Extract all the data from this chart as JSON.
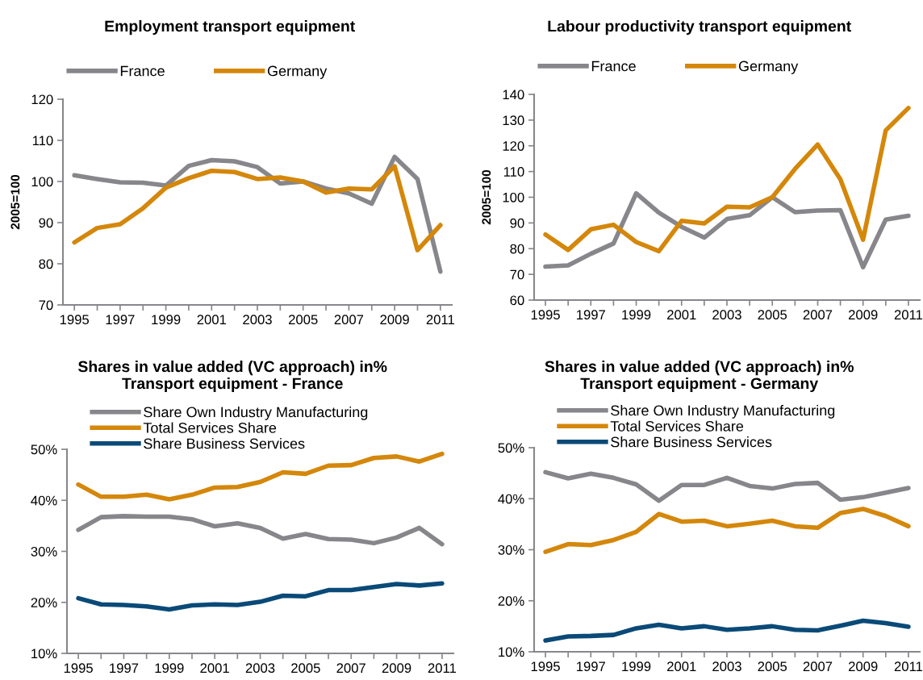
{
  "chart_data": [
    {
      "type": "line",
      "title": "Employment transport equipment",
      "ylabel": "2005=100",
      "categories": [
        "1995",
        null,
        "1997",
        null,
        "1999",
        null,
        "2001",
        null,
        "2003",
        null,
        "2005",
        null,
        "2007",
        null,
        "2009",
        null,
        "2011"
      ],
      "ylim": [
        70,
        120
      ],
      "yticks": [
        70,
        80,
        90,
        100,
        110,
        120
      ],
      "legend": "top",
      "grid": false,
      "series": [
        {
          "name": "France",
          "color": "#87868b",
          "values": [
            101.5,
            100.6,
            99.8,
            99.7,
            99,
            103.8,
            105.2,
            104.9,
            103.5,
            99.5,
            100,
            98.3,
            97.1,
            94.6,
            106,
            100.6,
            78.1
          ]
        },
        {
          "name": "Germany",
          "color": "#d4870a",
          "values": [
            85.2,
            88.7,
            89.6,
            93.5,
            98.5,
            100.8,
            102.6,
            102.3,
            100.6,
            101,
            100,
            97.3,
            98.3,
            98.1,
            103.7,
            83.3,
            89.4
          ]
        }
      ]
    },
    {
      "type": "line",
      "title": "Labour productivity transport equipment",
      "ylabel": "2005=100",
      "categories": [
        "1995",
        null,
        "1997",
        null,
        "1999",
        null,
        "2001",
        null,
        "2003",
        null,
        "2005",
        null,
        "2007",
        null,
        "2009",
        null,
        "2011"
      ],
      "ylim": [
        60,
        140
      ],
      "yticks": [
        60,
        70,
        80,
        90,
        100,
        110,
        120,
        130,
        140
      ],
      "legend": "top",
      "grid": false,
      "series": [
        {
          "name": "France",
          "color": "#87868b",
          "values": [
            73,
            73.5,
            78,
            82,
            101.5,
            94,
            88.5,
            84.3,
            91.5,
            93,
            100,
            94.2,
            94.8,
            95,
            72.8,
            91.3,
            92.8
          ]
        },
        {
          "name": "Germany",
          "color": "#d4870a",
          "values": [
            85.5,
            79.5,
            87.5,
            89.3,
            82.6,
            79,
            90.8,
            89.8,
            96.3,
            96.1,
            100,
            111,
            120.5,
            107,
            83.5,
            126,
            134.7
          ]
        }
      ]
    },
    {
      "type": "line",
      "title": "Shares in value added (VC approach) in%\nTransport equipment - France",
      "categories": [
        "1995",
        null,
        "1997",
        null,
        "1999",
        null,
        "2001",
        null,
        "2003",
        null,
        "2005",
        null,
        "2007",
        null,
        "2009",
        null,
        "2011"
      ],
      "ylim": [
        10,
        50
      ],
      "yticks": [
        {
          "value": 10,
          "label": "10%"
        },
        {
          "value": 20,
          "label": "20%"
        },
        {
          "value": 30,
          "label": "30%"
        },
        {
          "value": 40,
          "label": "40%"
        },
        {
          "value": 50,
          "label": "50%"
        }
      ],
      "legend": "top left",
      "grid": false,
      "series": [
        {
          "name": "Share Own Industry Manufacturing",
          "color": "#87868b",
          "values": [
            34.2,
            36.7,
            36.9,
            36.8,
            36.8,
            36.3,
            34.9,
            35.5,
            34.6,
            32.5,
            33.4,
            32.4,
            32.3,
            31.6,
            32.7,
            34.6,
            31.4
          ]
        },
        {
          "name": "Total Services Share",
          "color": "#d4870a",
          "values": [
            43.1,
            40.7,
            40.7,
            41.1,
            40.2,
            41.1,
            42.5,
            42.6,
            43.6,
            45.5,
            45.2,
            46.8,
            46.9,
            48.3,
            48.6,
            47.6,
            49.1
          ]
        },
        {
          "name": "Share Business Services",
          "color": "#0a4a78",
          "values": [
            20.8,
            19.6,
            19.5,
            19.2,
            18.6,
            19.4,
            19.6,
            19.5,
            20.1,
            21.3,
            21.2,
            22.4,
            22.4,
            23,
            23.6,
            23.3,
            23.7
          ]
        }
      ]
    },
    {
      "type": "line",
      "title": "Shares in value added (VC approach) in%\nTransport equipment - Germany",
      "categories": [
        "1995",
        null,
        "1997",
        null,
        "1999",
        null,
        "2001",
        null,
        "2003",
        null,
        "2005",
        null,
        "2007",
        null,
        "2009",
        null,
        "2011"
      ],
      "ylim": [
        10,
        50
      ],
      "yticks": [
        {
          "value": 10,
          "label": "10%"
        },
        {
          "value": 20,
          "label": "20%"
        },
        {
          "value": 30,
          "label": "30%"
        },
        {
          "value": 40,
          "label": "40%"
        },
        {
          "value": 50,
          "label": "50%"
        }
      ],
      "legend": "top left",
      "grid": false,
      "series": [
        {
          "name": "Share Own Industry Manufacturing",
          "color": "#87868b",
          "values": [
            45.2,
            44,
            44.9,
            44.1,
            42.8,
            39.6,
            42.7,
            42.7,
            44.1,
            42.5,
            42,
            42.9,
            43.1,
            39.8,
            40.3,
            41.2,
            42.1
          ]
        },
        {
          "name": "Total Services Share",
          "color": "#d4870a",
          "values": [
            29.6,
            31.1,
            30.9,
            31.9,
            33.5,
            37,
            35.5,
            35.7,
            34.6,
            35.1,
            35.7,
            34.6,
            34.3,
            37.2,
            38,
            36.6,
            34.6
          ]
        },
        {
          "name": "Share Business Services",
          "color": "#0a4a78",
          "values": [
            12.2,
            13,
            13.1,
            13.3,
            14.6,
            15.3,
            14.6,
            15,
            14.3,
            14.6,
            15,
            14.3,
            14.2,
            15.1,
            16.1,
            15.6,
            14.9
          ]
        }
      ]
    }
  ]
}
